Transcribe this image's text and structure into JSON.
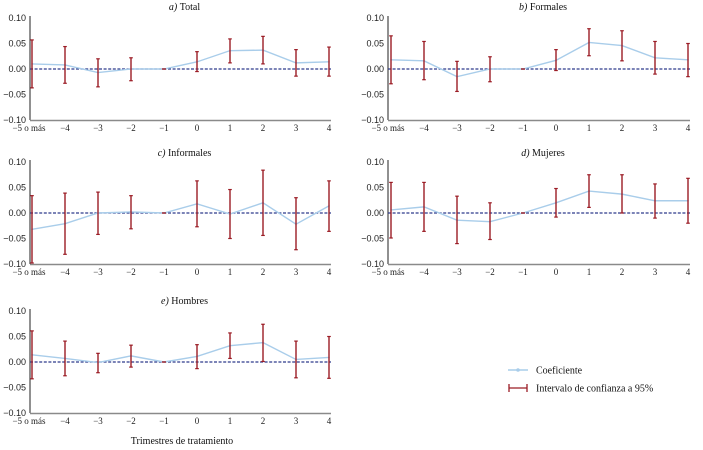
{
  "chart_data": [
    {
      "type": "line",
      "panel_letter": "a)",
      "title": "Total",
      "categories": [
        "−5 o más",
        "−4",
        "−3",
        "−2",
        "−1",
        "0",
        "1",
        "2",
        "3",
        "4"
      ],
      "yticks": [
        "0.10",
        "0.05",
        "0.00",
        "−0.05",
        "−0.10"
      ],
      "ylim": [
        -0.1,
        0.1
      ],
      "coef": [
        0.01,
        0.008,
        -0.007,
        0.0,
        0.0,
        0.014,
        0.036,
        0.037,
        0.012,
        0.014
      ],
      "ci_low": [
        -0.037,
        -0.028,
        -0.035,
        -0.023,
        0.0,
        -0.005,
        0.012,
        0.01,
        -0.014,
        -0.014
      ],
      "ci_high": [
        0.057,
        0.044,
        0.02,
        0.022,
        0.0,
        0.034,
        0.059,
        0.064,
        0.038,
        0.043
      ]
    },
    {
      "type": "line",
      "panel_letter": "b)",
      "title": "Formales",
      "categories": [
        "−5 o más",
        "−4",
        "−3",
        "−2",
        "−1",
        "0",
        "1",
        "2",
        "3",
        "4"
      ],
      "yticks": [
        "0.10",
        "0.05",
        "0.00",
        "−0.05",
        "−0.10"
      ],
      "ylim": [
        -0.1,
        0.1
      ],
      "coef": [
        0.018,
        0.016,
        -0.015,
        0.0,
        0.0,
        0.017,
        0.052,
        0.046,
        0.022,
        0.018
      ],
      "ci_low": [
        -0.029,
        -0.021,
        -0.044,
        -0.025,
        0.0,
        -0.003,
        0.026,
        0.016,
        -0.01,
        -0.015
      ],
      "ci_high": [
        0.065,
        0.054,
        0.015,
        0.024,
        0.0,
        0.038,
        0.079,
        0.075,
        0.054,
        0.05
      ]
    },
    {
      "type": "line",
      "panel_letter": "c)",
      "title": "Informales",
      "categories": [
        "−5 o más",
        "−4",
        "−3",
        "−2",
        "−1",
        "0",
        "1",
        "2",
        "3",
        "4"
      ],
      "yticks": [
        "0.10",
        "0.05",
        "0.00",
        "−0.05",
        "−0.10"
      ],
      "ylim": [
        -0.1,
        0.1
      ],
      "coef": [
        -0.032,
        -0.021,
        0.0,
        0.002,
        0.0,
        0.018,
        -0.002,
        0.02,
        -0.022,
        0.014
      ],
      "ci_low": [
        -0.098,
        -0.081,
        -0.042,
        -0.031,
        0.0,
        -0.027,
        -0.05,
        -0.044,
        -0.072,
        -0.036
      ],
      "ci_high": [
        0.034,
        0.039,
        0.041,
        0.034,
        0.0,
        0.063,
        0.046,
        0.084,
        0.03,
        0.063
      ]
    },
    {
      "type": "line",
      "panel_letter": "d)",
      "title": "Mujeres",
      "categories": [
        "−5 o más",
        "−4",
        "−3",
        "−2",
        "−1",
        "0",
        "1",
        "2",
        "3",
        "4"
      ],
      "yticks": [
        "0.10",
        "0.05",
        "0.00",
        "−0.05",
        "−0.10"
      ],
      "ylim": [
        -0.1,
        0.1
      ],
      "coef": [
        0.006,
        0.012,
        -0.014,
        -0.017,
        0.0,
        0.02,
        0.043,
        0.037,
        0.024,
        0.024
      ],
      "ci_low": [
        -0.049,
        -0.036,
        -0.06,
        -0.052,
        0.0,
        -0.008,
        0.011,
        0.0,
        -0.01,
        -0.02
      ],
      "ci_high": [
        0.06,
        0.06,
        0.033,
        0.02,
        0.0,
        0.048,
        0.075,
        0.075,
        0.057,
        0.068
      ]
    },
    {
      "type": "line",
      "panel_letter": "e)",
      "title": "Hombres",
      "categories": [
        "−5 o más",
        "−4",
        "−3",
        "−2",
        "−1",
        "0",
        "1",
        "2",
        "3",
        "4"
      ],
      "yticks": [
        "0.10",
        "0.05",
        "0.00",
        "−0.05",
        "−0.10"
      ],
      "ylim": [
        -0.1,
        0.1
      ],
      "coef": [
        0.014,
        0.007,
        -0.001,
        0.012,
        0.0,
        0.011,
        0.032,
        0.038,
        0.005,
        0.009
      ],
      "ci_low": [
        -0.033,
        -0.027,
        -0.021,
        -0.01,
        0.0,
        -0.013,
        0.007,
        0.001,
        -0.031,
        -0.032
      ],
      "ci_high": [
        0.061,
        0.041,
        0.017,
        0.033,
        0.0,
        0.034,
        0.057,
        0.074,
        0.041,
        0.05
      ],
      "xlabel": "Trimestres de tratamiento"
    }
  ],
  "legend": {
    "coef_label": "Coeficiente",
    "ci_label": "Intervalo de confianza a 95%",
    "placement": "bottom-right"
  },
  "colors": {
    "coef_line": "#a9cdea",
    "ci_bar": "#9b1c25",
    "zero_line": "#2e3a8c",
    "y_axis": "#222222",
    "x_axis": "#8a8a8a"
  },
  "xlabel": "Trimestres de tratamiento"
}
